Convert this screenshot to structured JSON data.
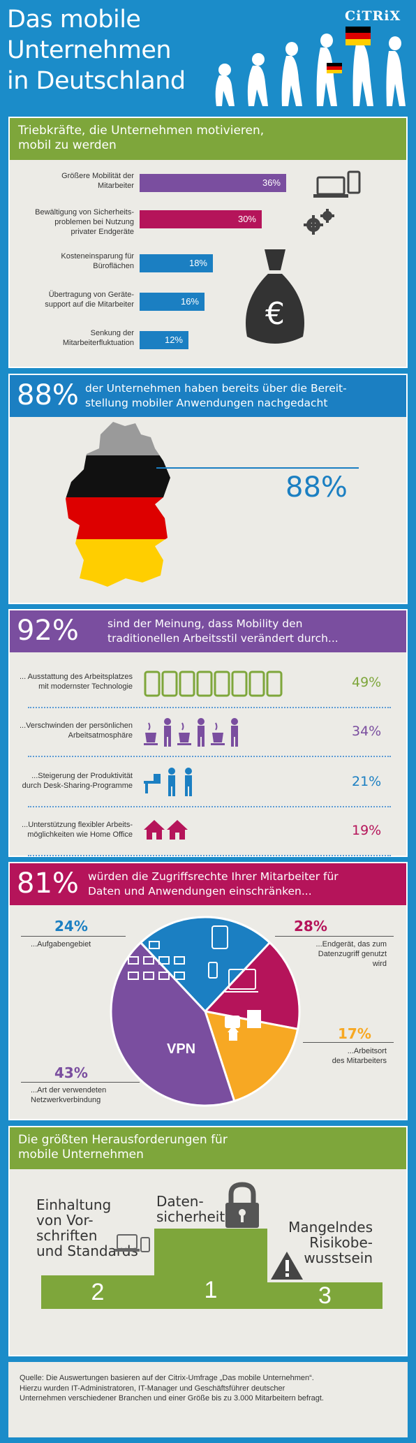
{
  "header": {
    "title_lines": [
      "Das mobile",
      "Unternehmen",
      "in Deutschland"
    ],
    "brand": "CiTRiX"
  },
  "drivers": {
    "title_lines": [
      "Triebkräfte, die Unternehmen motivieren,",
      "mobil zu werden"
    ],
    "items": [
      {
        "label_lines": [
          "Größere Mobilität der",
          "Mitarbeiter"
        ],
        "value": "36%",
        "pct": 36,
        "color": "#7a4e9f"
      },
      {
        "label_lines": [
          "Bewältigung von Sicherheits-",
          "problemen bei Nutzung",
          "privater Endgeräte"
        ],
        "value": "30%",
        "pct": 30,
        "color": "#b5145a"
      },
      {
        "label_lines": [
          "Kosteneinsparung für",
          "Büroflächen"
        ],
        "value": "18%",
        "pct": 18,
        "color": "#1b7fc2"
      },
      {
        "label_lines": [
          "Übertragung von Geräte-",
          "support auf die Mitarbeiter"
        ],
        "value": "16%",
        "pct": 16,
        "color": "#1b7fc2"
      },
      {
        "label_lines": [
          "Senkung der",
          "Mitarbeiterfluktuation"
        ],
        "value": "12%",
        "pct": 12,
        "color": "#1b7fc2"
      }
    ],
    "money_symbol": "€"
  },
  "apps": {
    "big": "88%",
    "text_lines": [
      "der Unternehmen haben bereits über die Bereit-",
      "stellung mobiler Anwendungen nachgedacht"
    ],
    "map_value": "88%"
  },
  "workstyle": {
    "big": "92%",
    "text_lines": [
      "sind der Meinung, dass Mobility den",
      "traditionellen Arbeitsstil verändert durch..."
    ],
    "items": [
      {
        "label_lines": [
          "... Ausstattung des Arbeitsplatzes",
          "mit modernster Technologie"
        ],
        "value": "49%",
        "color": "#7ea63b"
      },
      {
        "label_lines": [
          "...Verschwinden der persönlichen",
          "Arbeitsatmosphäre"
        ],
        "value": "34%",
        "color": "#7a4e9f"
      },
      {
        "label_lines": [
          "...Steigerung der Produktivität",
          "durch Desk-Sharing-Programme"
        ],
        "value": "21%",
        "color": "#1b7fc2"
      },
      {
        "label_lines": [
          "...Unterstützung flexibler Arbeits-",
          "möglichkeiten wie Home Office"
        ],
        "value": "19%",
        "color": "#b5145a"
      }
    ]
  },
  "access": {
    "big": "81%",
    "text_lines": [
      "würden die Zugriffsrechte Ihrer Mitarbeiter für",
      "Daten und Anwendungen einschränken..."
    ],
    "slices": [
      {
        "value": "24%",
        "pct": 24,
        "label_lines": [
          "...Aufgabengebiet"
        ],
        "color": "#1b7fc2"
      },
      {
        "value": "28%",
        "pct": 28,
        "label_lines": [
          "...Endgerät, das zum",
          "Datenzugriff genutzt",
          "wird"
        ],
        "color": "#b5145a"
      },
      {
        "value": "17%",
        "pct": 17,
        "label_lines": [
          "...Arbeitsort",
          "des Mitarbeiters"
        ],
        "color": "#f7a823"
      },
      {
        "value": "43%",
        "pct": 43,
        "label_lines": [
          "...Art der verwendeten",
          "Netzwerkverbindung"
        ],
        "color": "#7a4e9f"
      }
    ],
    "vpn": "VPN"
  },
  "challenges": {
    "title_lines": [
      "Die größten Herausforderungen für",
      "mobile Unternehmen"
    ],
    "podium": [
      {
        "rank": "2",
        "label_lines": [
          "Einhaltung",
          "von Vor-",
          "schriften",
          "und Standards"
        ]
      },
      {
        "rank": "1",
        "label_lines": [
          "Daten-",
          "sicherheit"
        ]
      },
      {
        "rank": "3",
        "label_lines": [
          "Mangelndes",
          "Risikobe-",
          "wusstsein"
        ]
      }
    ]
  },
  "source": {
    "lines": [
      "Quelle: Die Auswertungen basieren auf der Citrix-Umfrage „Das mobile Unternehmen“.",
      "Hierzu wurden IT-Administratoren, IT-Manager und Geschäftsführer deutscher",
      "Unternehmen verschiedener Branchen und einer Größe bis zu 3.000 Mitarbeitern befragt."
    ]
  }
}
